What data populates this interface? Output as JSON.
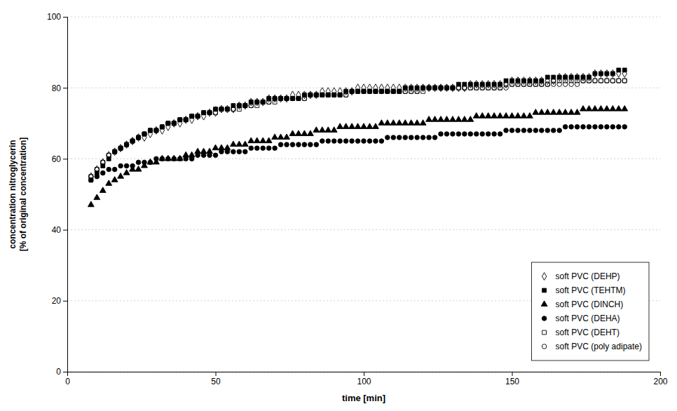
{
  "chart_data": {
    "type": "scatter",
    "xlabel": "time [min]",
    "ylabel": "concentration nitroglycerin\n[% of original concentration]",
    "xlim": [
      0,
      200
    ],
    "ylim": [
      0,
      100
    ],
    "xticks": [
      0,
      50,
      100,
      150,
      200
    ],
    "yticks": [
      0,
      20,
      40,
      60,
      80,
      100
    ],
    "grid": "y",
    "legend": "lower right",
    "series": [
      {
        "name": "soft PVC (DEHP)",
        "color": "#000000",
        "marker": "diamond-open",
        "x": [
          8,
          10,
          12,
          14,
          16,
          18,
          20,
          22,
          24,
          26,
          28,
          30,
          32,
          34,
          36,
          38,
          40,
          42,
          44,
          46,
          48,
          50,
          52,
          54,
          56,
          58,
          60,
          62,
          64,
          66,
          68,
          70,
          72,
          74,
          76,
          78,
          80,
          82,
          84,
          86,
          88,
          90,
          92,
          94,
          96,
          98,
          100,
          102,
          104,
          106,
          108,
          110,
          112,
          114,
          116,
          118,
          120,
          122,
          124,
          126,
          128,
          130,
          132,
          134,
          136,
          138,
          140,
          142,
          144,
          146,
          148,
          150,
          152,
          154,
          156,
          158,
          160,
          162,
          164,
          166,
          168,
          170,
          172,
          174,
          176,
          178,
          180,
          182,
          184,
          186,
          188
        ],
        "values": [
          55,
          57,
          59,
          61,
          62,
          63,
          64,
          65,
          66,
          66,
          67,
          68,
          68,
          69,
          70,
          70,
          71,
          71,
          72,
          72,
          73,
          73,
          74,
          74,
          74,
          75,
          75,
          76,
          76,
          76,
          77,
          77,
          77,
          77,
          78,
          78,
          78,
          78,
          78,
          79,
          79,
          79,
          79,
          79,
          79,
          80,
          80,
          80,
          80,
          80,
          80,
          80,
          80,
          80,
          80,
          80,
          80,
          80,
          80,
          80,
          80,
          80,
          80,
          80,
          81,
          81,
          81,
          81,
          81,
          81,
          81,
          82,
          82,
          82,
          82,
          82,
          82,
          82,
          82,
          83,
          83,
          83,
          83,
          83,
          83,
          84,
          84,
          84,
          84,
          84,
          84
        ]
      },
      {
        "name": "soft PVC (TEHTM)",
        "color": "#000000",
        "marker": "square",
        "x": [
          8,
          10,
          12,
          14,
          16,
          18,
          20,
          22,
          24,
          26,
          28,
          30,
          32,
          34,
          36,
          38,
          40,
          42,
          44,
          46,
          48,
          50,
          52,
          54,
          56,
          58,
          60,
          62,
          64,
          66,
          68,
          70,
          72,
          74,
          76,
          78,
          80,
          82,
          84,
          86,
          88,
          90,
          92,
          94,
          96,
          98,
          100,
          102,
          104,
          106,
          108,
          110,
          112,
          114,
          116,
          118,
          120,
          122,
          124,
          126,
          128,
          130,
          132,
          134,
          136,
          138,
          140,
          142,
          144,
          146,
          148,
          150,
          152,
          154,
          156,
          158,
          160,
          162,
          164,
          166,
          168,
          170,
          172,
          174,
          176,
          178,
          180,
          182,
          184,
          186,
          188
        ],
        "values": [
          54,
          56,
          58,
          60,
          62,
          63,
          64,
          65,
          66,
          67,
          68,
          68,
          69,
          70,
          70,
          71,
          71,
          72,
          72,
          73,
          73,
          74,
          74,
          74,
          75,
          75,
          75,
          76,
          76,
          76,
          77,
          77,
          77,
          77,
          77,
          77,
          78,
          78,
          78,
          78,
          78,
          78,
          78,
          79,
          79,
          79,
          79,
          79,
          79,
          79,
          79,
          79,
          79,
          80,
          80,
          80,
          80,
          80,
          80,
          80,
          80,
          80,
          81,
          81,
          81,
          81,
          81,
          81,
          81,
          81,
          82,
          82,
          82,
          82,
          82,
          82,
          82,
          83,
          83,
          83,
          83,
          83,
          83,
          83,
          83,
          84,
          84,
          84,
          84,
          85,
          85
        ]
      },
      {
        "name": "soft PVC (DINCH)",
        "color": "#000000",
        "marker": "triangle",
        "x": [
          8,
          10,
          12,
          14,
          16,
          18,
          20,
          22,
          24,
          26,
          28,
          30,
          32,
          34,
          36,
          38,
          40,
          42,
          44,
          46,
          48,
          50,
          52,
          54,
          56,
          58,
          60,
          62,
          64,
          66,
          68,
          70,
          72,
          74,
          76,
          78,
          80,
          82,
          84,
          86,
          88,
          90,
          92,
          94,
          96,
          98,
          100,
          102,
          104,
          106,
          108,
          110,
          112,
          114,
          116,
          118,
          120,
          122,
          124,
          126,
          128,
          130,
          132,
          134,
          136,
          138,
          140,
          142,
          144,
          146,
          148,
          150,
          152,
          154,
          156,
          158,
          160,
          162,
          164,
          166,
          168,
          170,
          172,
          174,
          176,
          178,
          180,
          182,
          184,
          186,
          188
        ],
        "values": [
          47,
          49,
          51,
          53,
          54,
          55,
          56,
          57,
          57,
          58,
          59,
          59,
          60,
          60,
          60,
          60,
          61,
          61,
          62,
          62,
          62,
          63,
          63,
          63,
          64,
          64,
          64,
          65,
          65,
          65,
          65,
          66,
          66,
          66,
          67,
          67,
          67,
          67,
          68,
          68,
          68,
          68,
          69,
          69,
          69,
          69,
          69,
          69,
          69,
          70,
          70,
          70,
          70,
          70,
          70,
          70,
          70,
          71,
          71,
          71,
          71,
          71,
          71,
          71,
          71,
          72,
          72,
          72,
          72,
          72,
          72,
          72,
          72,
          72,
          72,
          73,
          73,
          73,
          73,
          73,
          73,
          73,
          73,
          74,
          74,
          74,
          74,
          74,
          74,
          74,
          74
        ]
      },
      {
        "name": "soft PVC (DEHA)",
        "color": "#000000",
        "marker": "circle",
        "x": [
          8,
          10,
          12,
          14,
          16,
          18,
          20,
          22,
          24,
          26,
          28,
          30,
          32,
          34,
          36,
          38,
          40,
          42,
          44,
          46,
          48,
          50,
          52,
          54,
          56,
          58,
          60,
          62,
          64,
          66,
          68,
          70,
          72,
          74,
          76,
          78,
          80,
          82,
          84,
          86,
          88,
          90,
          92,
          94,
          96,
          98,
          100,
          102,
          104,
          106,
          108,
          110,
          112,
          114,
          116,
          118,
          120,
          122,
          124,
          126,
          128,
          130,
          132,
          134,
          136,
          138,
          140,
          142,
          144,
          146,
          148,
          150,
          152,
          154,
          156,
          158,
          160,
          162,
          164,
          166,
          168,
          170,
          172,
          174,
          176,
          178,
          180,
          182,
          184,
          186,
          188
        ],
        "values": [
          54,
          55,
          56,
          57,
          57,
          58,
          58,
          58,
          59,
          59,
          59,
          60,
          60,
          60,
          60,
          60,
          60,
          60,
          61,
          61,
          61,
          61,
          62,
          62,
          62,
          62,
          62,
          63,
          63,
          63,
          63,
          63,
          64,
          64,
          64,
          64,
          64,
          64,
          64,
          65,
          65,
          65,
          65,
          65,
          65,
          65,
          65,
          65,
          65,
          65,
          66,
          66,
          66,
          66,
          66,
          66,
          66,
          66,
          66,
          67,
          67,
          67,
          67,
          67,
          67,
          67,
          67,
          67,
          67,
          67,
          68,
          68,
          68,
          68,
          68,
          68,
          68,
          68,
          68,
          68,
          69,
          69,
          69,
          69,
          69,
          69,
          69,
          69,
          69,
          69,
          69
        ]
      },
      {
        "name": "soft PVC (DEHT)",
        "color": "#000000",
        "marker": "square-open",
        "x": [
          8,
          10,
          12,
          14,
          16,
          18,
          20,
          22,
          24,
          26,
          28,
          30,
          32,
          34,
          36,
          38,
          40,
          42,
          44,
          46,
          48,
          50,
          52,
          54,
          56,
          58,
          60,
          62,
          64,
          66,
          68,
          70,
          72,
          74,
          76,
          78,
          80,
          82,
          84,
          86,
          88,
          90,
          92,
          94,
          96,
          98,
          100,
          102,
          104,
          106,
          108,
          110,
          112,
          114,
          116,
          118,
          120,
          122,
          124,
          126,
          128,
          130,
          132,
          134,
          136,
          138,
          140,
          142,
          144,
          146,
          148,
          150,
          152,
          154,
          156,
          158,
          160,
          162,
          164,
          166,
          168,
          170,
          172,
          174,
          176,
          178,
          180,
          182,
          184,
          186,
          188
        ],
        "values": [
          55,
          57,
          59,
          61,
          62,
          63,
          64,
          65,
          66,
          67,
          68,
          68,
          69,
          70,
          70,
          71,
          71,
          72,
          72,
          73,
          73,
          73,
          74,
          74,
          74,
          74,
          75,
          75,
          75,
          76,
          76,
          76,
          77,
          77,
          77,
          77,
          77,
          78,
          78,
          78,
          78,
          78,
          78,
          78,
          79,
          79,
          79,
          79,
          79,
          79,
          79,
          79,
          79,
          79,
          79,
          79,
          79,
          80,
          80,
          80,
          80,
          80,
          80,
          80,
          80,
          80,
          80,
          80,
          80,
          80,
          81,
          81,
          81,
          81,
          81,
          81,
          81,
          81,
          82,
          82,
          82,
          82,
          82,
          82,
          82,
          82,
          82,
          82,
          82,
          82,
          82
        ]
      },
      {
        "name": "soft PVC (poly adipate)",
        "color": "#000000",
        "marker": "circle-open",
        "x": [
          8,
          10,
          12,
          14,
          16,
          18,
          20,
          22,
          24,
          26,
          28,
          30,
          32,
          34,
          36,
          38,
          40,
          42,
          44,
          46,
          48,
          50,
          52,
          54,
          56,
          58,
          60,
          62,
          64,
          66,
          68,
          70,
          72,
          74,
          76,
          78,
          80,
          82,
          84,
          86,
          88,
          90,
          92,
          94,
          96,
          98,
          100,
          102,
          104,
          106,
          108,
          110,
          112,
          114,
          116,
          118,
          120,
          122,
          124,
          126,
          128,
          130,
          132,
          134,
          136,
          138,
          140,
          142,
          144,
          146,
          148,
          150,
          152,
          154,
          156,
          158,
          160,
          162,
          164,
          166,
          168,
          170,
          172,
          174,
          176,
          178,
          180,
          182,
          184,
          186,
          188
        ],
        "values": [
          55,
          57,
          59,
          61,
          62,
          63,
          64,
          65,
          66,
          67,
          68,
          68,
          69,
          70,
          70,
          71,
          71,
          72,
          72,
          73,
          73,
          74,
          74,
          74,
          74,
          75,
          75,
          75,
          76,
          76,
          76,
          77,
          77,
          77,
          77,
          77,
          77,
          78,
          78,
          78,
          78,
          78,
          78,
          78,
          79,
          79,
          79,
          79,
          79,
          79,
          79,
          79,
          79,
          79,
          79,
          79,
          80,
          80,
          80,
          80,
          80,
          80,
          80,
          80,
          80,
          80,
          80,
          80,
          80,
          80,
          80,
          81,
          81,
          81,
          81,
          81,
          81,
          81,
          81,
          81,
          81,
          81,
          81,
          82,
          82,
          82,
          82,
          82,
          82,
          82,
          82
        ]
      }
    ]
  }
}
